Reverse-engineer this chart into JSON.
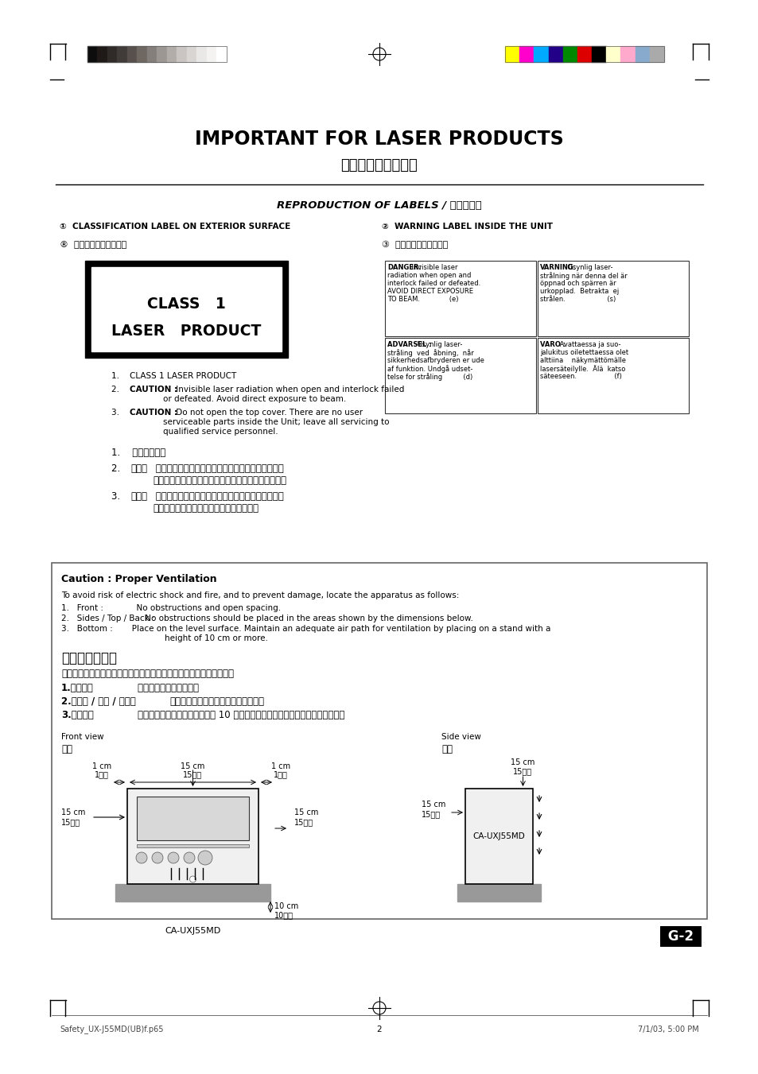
{
  "bg_color": "#ffffff",
  "page_width": 9.54,
  "page_height": 13.51,
  "title_main": "IMPORTANT FOR LASER PRODUCTS",
  "title_sub": "锴射产品的重要说明",
  "section_title": "REPRODUCTION OF LABELS / 说明文抄录",
  "label1_en": "CLASSIFICATION LABEL ON EXTERIOR SURFACE",
  "label1_cn": "位于机表的分类说明文",
  "label2_en": "WARNING LABEL INSIDE THE UNIT",
  "label2_cn": "位于机内的警告说明文",
  "class_label_line1": "CLASS   1",
  "class_label_line2": "LASER   PRODUCT",
  "caution_title": "Caution : Proper Ventilation",
  "caution_body_en": "To avoid risk of electric shock and fire, and to prevent damage, locate the apparatus as follows:",
  "caution_title_cn": "注意：正确通风",
  "caution_body_cn": "为避免发生触电和火灾的危险，及防止本机受损，请将本机如下放置：",
  "footer_left": "Safety_UX-J55MD(UB)f.p65",
  "footer_middle": "2",
  "footer_right": "7/1/03, 5:00 PM",
  "page_num": "G-2",
  "gray_colors": [
    "#0d0d0d",
    "#1f1a18",
    "#302b28",
    "#413c39",
    "#57504c",
    "#6e6762",
    "#857f7b",
    "#9d9793",
    "#b3adaa",
    "#cac5c2",
    "#d9d5d3",
    "#eae8e7",
    "#f4f3f2",
    "#ffffff"
  ],
  "color_bars": [
    "#ffff00",
    "#ff00cc",
    "#00aaff",
    "#220088",
    "#008800",
    "#dd0000",
    "#000000",
    "#ffffcc",
    "#ffaacc",
    "#88aacc",
    "#aaaaaa"
  ]
}
